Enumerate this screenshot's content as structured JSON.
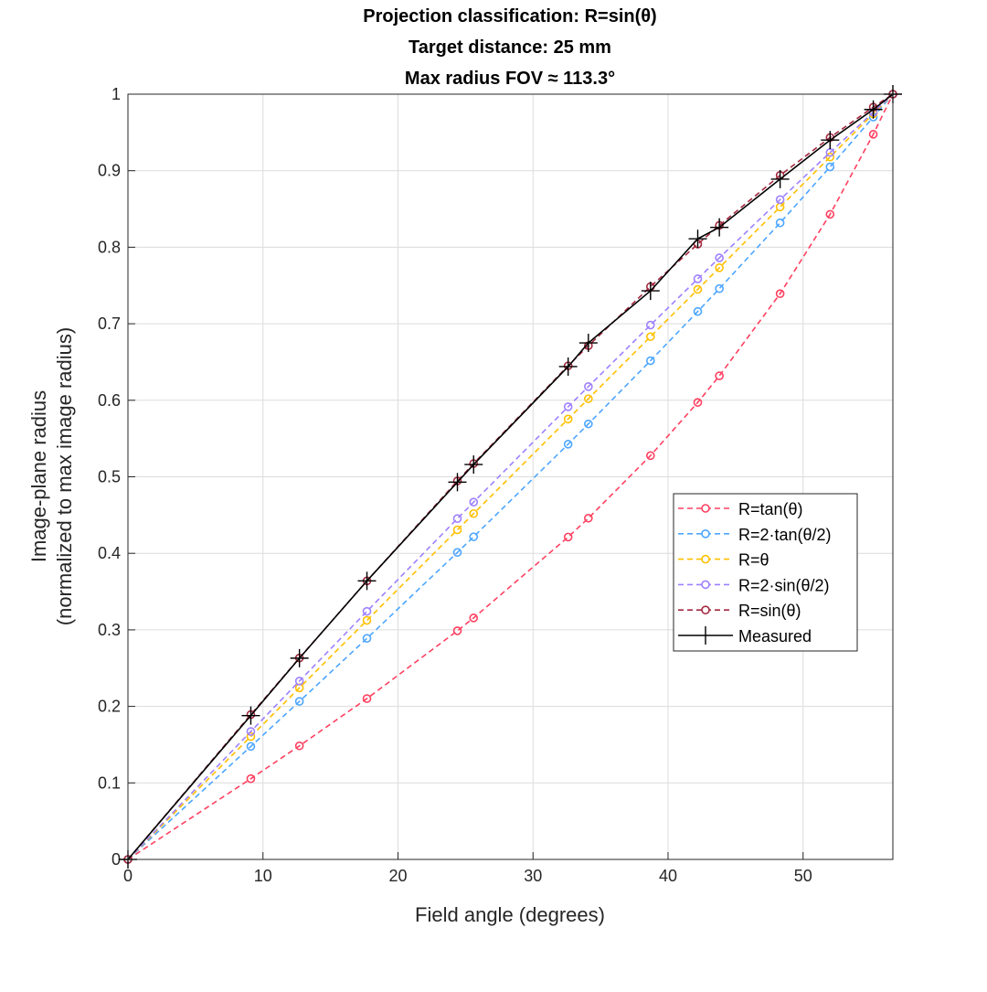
{
  "chart_data": {
    "type": "line",
    "title_lines": [
      "Projection classification: R=sin(θ)",
      "Target distance: 25 mm",
      "Max radius FOV ≈ 113.3°"
    ],
    "xlabel": "Field angle (degrees)",
    "ylabel_lines": [
      "Image-plane radius",
      "(normalized to max image radius)"
    ],
    "xlim": [
      0,
      56.65
    ],
    "ylim": [
      0,
      1
    ],
    "xticks": [
      0,
      10,
      20,
      30,
      40,
      50
    ],
    "yticks": [
      0,
      0.1,
      0.2,
      0.3,
      0.4,
      0.5,
      0.6,
      0.7,
      0.8,
      0.9,
      1
    ],
    "ytick_labels": [
      "0",
      "0.1",
      "0.2",
      "0.3",
      "0.4",
      "0.5",
      "0.6",
      "0.7",
      "0.8",
      "0.9",
      "1"
    ],
    "grid": true,
    "legend_position": "right-middle",
    "x": [
      0,
      9.1,
      12.7,
      17.7,
      24.4,
      25.6,
      32.6,
      34.1,
      38.7,
      42.2,
      43.8,
      48.3,
      52.0,
      55.2,
      56.65
    ],
    "series": [
      {
        "name": "R=tan(θ)",
        "color": "#ff4060",
        "style": "dashed-circle",
        "values": [
          0,
          0.1055,
          0.1484,
          0.2102,
          0.2988,
          0.3156,
          0.4213,
          0.4459,
          0.5277,
          0.5972,
          0.6319,
          0.7393,
          0.843,
          0.9476,
          1
        ]
      },
      {
        "name": "R=2·tan(θ/2)",
        "color": "#4da6ff",
        "style": "dashed-circle",
        "values": [
          0,
          0.1477,
          0.2065,
          0.2889,
          0.4012,
          0.4216,
          0.5426,
          0.5691,
          0.6517,
          0.716,
          0.7459,
          0.8319,
          0.905,
          0.9701,
          1
        ]
      },
      {
        "name": "R=θ",
        "color": "#ffc000",
        "style": "dashed-circle",
        "values": [
          0,
          0.1606,
          0.2242,
          0.3124,
          0.4307,
          0.4519,
          0.5755,
          0.602,
          0.6831,
          0.7449,
          0.7732,
          0.8526,
          0.9179,
          0.9744,
          1
        ]
      },
      {
        "name": "R=2·sin(θ/2)",
        "color": "#9e80ff",
        "style": "dashed-circle",
        "values": [
          0,
          0.1672,
          0.2331,
          0.3242,
          0.4454,
          0.4669,
          0.5915,
          0.6179,
          0.6983,
          0.7587,
          0.7861,
          0.8622,
          0.9238,
          0.9764,
          1
        ]
      },
      {
        "name": "R=sin(θ)",
        "color": "#a3293f",
        "style": "dashed-circle",
        "values": [
          0,
          0.1893,
          0.2632,
          0.364,
          0.4946,
          0.5173,
          0.645,
          0.6713,
          0.7485,
          0.8041,
          0.8286,
          0.8939,
          0.9434,
          0.9831,
          1
        ]
      },
      {
        "name": "Measured",
        "color": "#000000",
        "style": "solid-plus",
        "values": [
          0,
          0.188,
          0.263,
          0.364,
          0.493,
          0.516,
          0.644,
          0.675,
          0.743,
          0.811,
          0.826,
          0.889,
          0.94,
          0.98,
          1
        ]
      }
    ]
  }
}
